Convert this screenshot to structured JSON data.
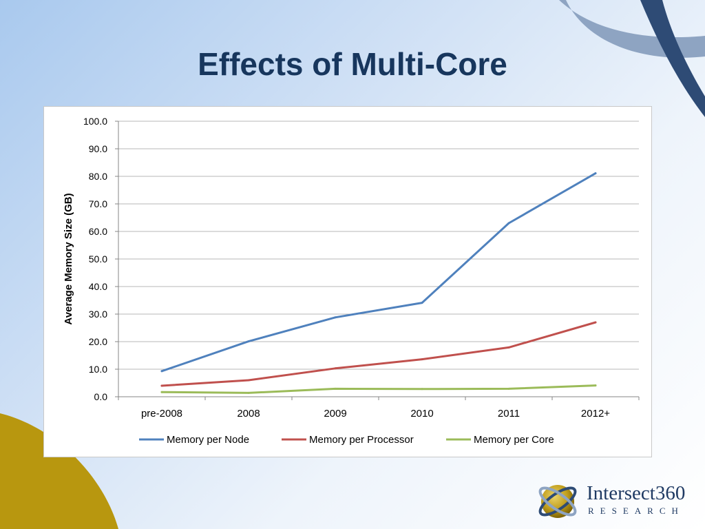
{
  "slide": {
    "title": "Effects of Multi-Core"
  },
  "logo": {
    "name": "Intersect360",
    "subtitle": "RESEARCH"
  },
  "colors": {
    "title": "#17365d",
    "deco_gray_band": "#8ea4c2",
    "deco_navy_band": "#2e4b75",
    "deco_gold": "#b8970f"
  },
  "chart_data": {
    "type": "line",
    "title": "",
    "xlabel": "",
    "ylabel": "Average Memory Size (GB)",
    "categories": [
      "pre-2008",
      "2008",
      "2009",
      "2010",
      "2011",
      "2012+"
    ],
    "ylim": [
      0,
      100
    ],
    "yticks": [
      "0.0",
      "10.0",
      "20.0",
      "30.0",
      "40.0",
      "50.0",
      "60.0",
      "70.0",
      "80.0",
      "90.0",
      "100.0"
    ],
    "grid": true,
    "legend_position": "bottom",
    "series": [
      {
        "name": "Memory per Node",
        "color": "#4f81bd",
        "values": [
          9.3,
          20.1,
          28.8,
          34.1,
          63.0,
          81.1
        ]
      },
      {
        "name": "Memory per Processor",
        "color": "#c0504d",
        "values": [
          4.0,
          6.0,
          10.3,
          13.6,
          17.9,
          27.0
        ]
      },
      {
        "name": "Memory per Core",
        "color": "#9bbb59",
        "values": [
          1.7,
          1.4,
          2.9,
          2.8,
          2.9,
          4.1
        ]
      }
    ]
  }
}
